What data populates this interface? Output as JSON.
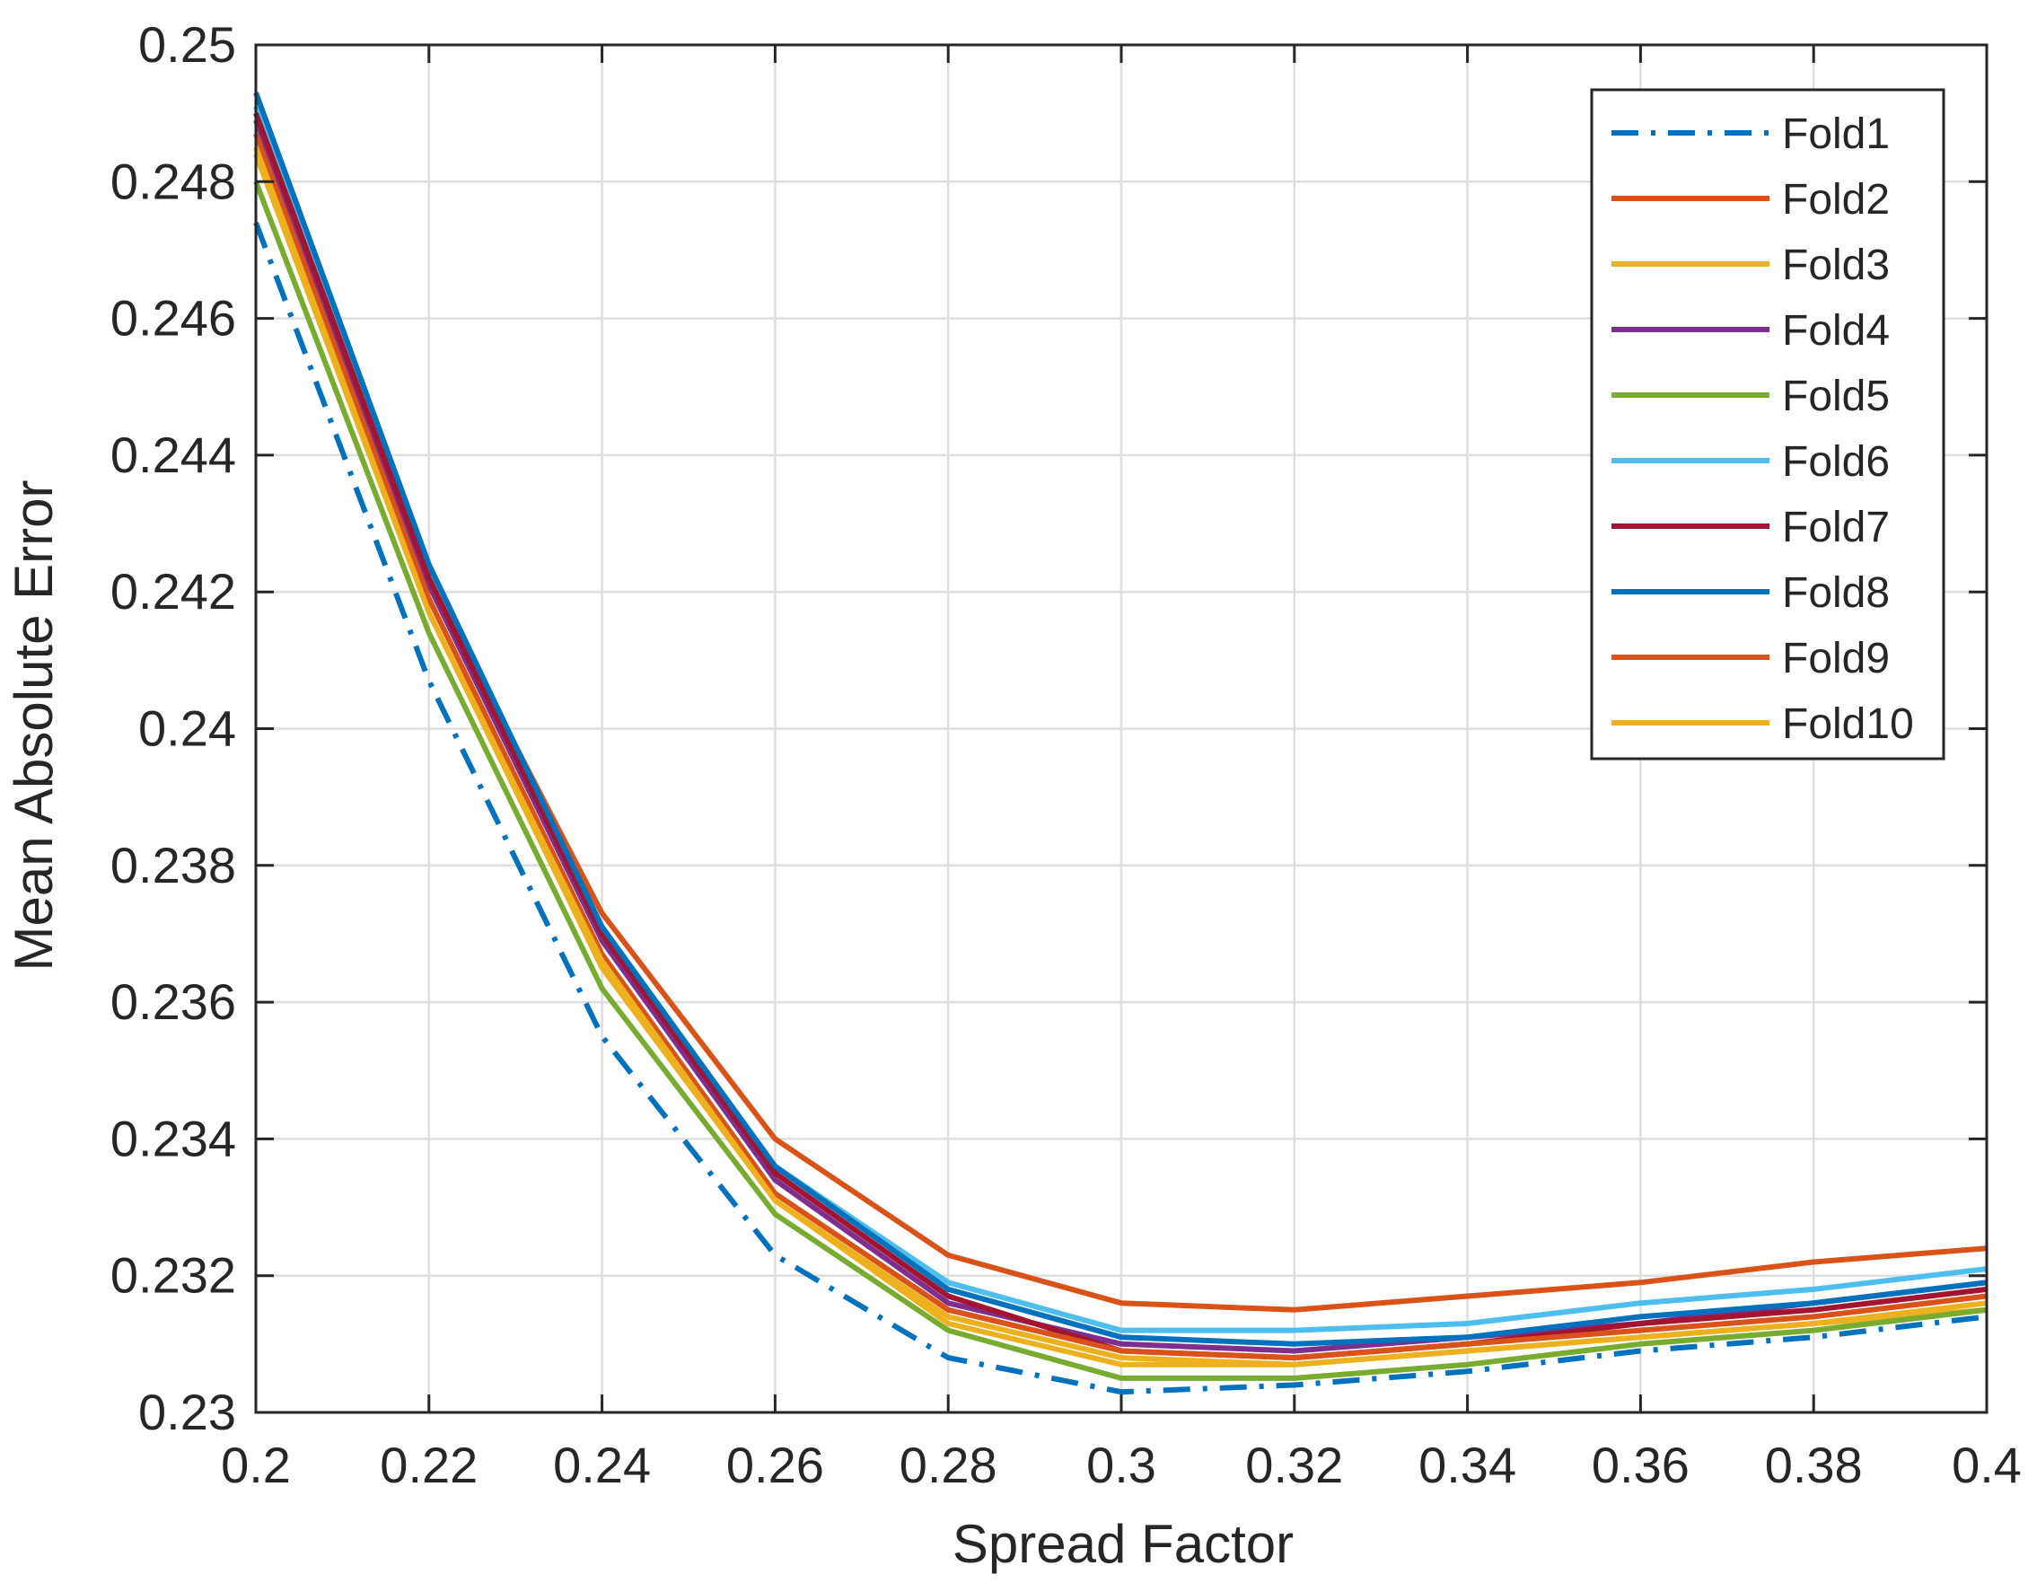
{
  "chart_data": {
    "type": "line",
    "title": "",
    "xlabel": "Spread Factor",
    "ylabel": "Mean Absolute Error",
    "xlim": [
      0.2,
      0.4
    ],
    "ylim": [
      0.23,
      0.25
    ],
    "grid": true,
    "legend_position": "top-right",
    "x": [
      0.2,
      0.22,
      0.24,
      0.26,
      0.28,
      0.3,
      0.32,
      0.34,
      0.36,
      0.38,
      0.4
    ],
    "x_ticks": [
      "0.2",
      "0.22",
      "0.24",
      "0.26",
      "0.28",
      "0.3",
      "0.32",
      "0.34",
      "0.36",
      "0.38",
      "0.4"
    ],
    "y_ticks": [
      {
        "value": 0.23,
        "label": "0.23"
      },
      {
        "value": 0.232,
        "label": "0.232"
      },
      {
        "value": 0.234,
        "label": "0.234"
      },
      {
        "value": 0.236,
        "label": "0.236"
      },
      {
        "value": 0.238,
        "label": "0.238"
      },
      {
        "value": 0.24,
        "label": "0.24"
      },
      {
        "value": 0.242,
        "label": "0.242"
      },
      {
        "value": 0.244,
        "label": "0.244"
      },
      {
        "value": 0.246,
        "label": "0.246"
      },
      {
        "value": 0.248,
        "label": "0.248"
      },
      {
        "value": 0.25,
        "label": "0.25"
      }
    ],
    "series": [
      {
        "name": "Fold1",
        "color": "#0072BD",
        "dash": "dashdot",
        "values": [
          0.2474,
          0.2407,
          0.2355,
          0.2323,
          0.2308,
          0.2303,
          0.2304,
          0.2306,
          0.2309,
          0.2311,
          0.2314
        ]
      },
      {
        "name": "Fold2",
        "color": "#D95319",
        "dash": "solid",
        "values": [
          0.249,
          0.2422,
          0.2373,
          0.234,
          0.2323,
          0.2316,
          0.2315,
          0.2317,
          0.2319,
          0.2322,
          0.2324
        ]
      },
      {
        "name": "Fold3",
        "color": "#EDB120",
        "dash": "solid",
        "values": [
          0.2484,
          0.2417,
          0.2365,
          0.2331,
          0.2313,
          0.2307,
          0.2307,
          0.2309,
          0.2311,
          0.2313,
          0.2315
        ]
      },
      {
        "name": "Fold4",
        "color": "#7E2F8E",
        "dash": "solid",
        "values": [
          0.2489,
          0.2421,
          0.2369,
          0.2334,
          0.2316,
          0.231,
          0.2309,
          0.2311,
          0.2313,
          0.2316,
          0.2319
        ]
      },
      {
        "name": "Fold5",
        "color": "#77AC30",
        "dash": "solid",
        "values": [
          0.248,
          0.2414,
          0.2362,
          0.2329,
          0.2312,
          0.2305,
          0.2305,
          0.2307,
          0.231,
          0.2312,
          0.2315
        ]
      },
      {
        "name": "Fold6",
        "color": "#4DBEEE",
        "dash": "solid",
        "values": [
          0.2491,
          0.2423,
          0.2371,
          0.2336,
          0.2319,
          0.2312,
          0.2312,
          0.2313,
          0.2316,
          0.2318,
          0.2321
        ]
      },
      {
        "name": "Fold7",
        "color": "#A2142F",
        "dash": "solid",
        "values": [
          0.249,
          0.2422,
          0.237,
          0.2335,
          0.2317,
          0.2309,
          0.2308,
          0.231,
          0.2313,
          0.2315,
          0.2318
        ]
      },
      {
        "name": "Fold8",
        "color": "#0072BD",
        "dash": "solid",
        "values": [
          0.2493,
          0.2424,
          0.2371,
          0.2336,
          0.2318,
          0.2311,
          0.231,
          0.2311,
          0.2314,
          0.2316,
          0.2319
        ]
      },
      {
        "name": "Fold9",
        "color": "#D95319",
        "dash": "solid",
        "values": [
          0.2487,
          0.2419,
          0.2367,
          0.2332,
          0.2315,
          0.2309,
          0.2308,
          0.231,
          0.2312,
          0.2314,
          0.2317
        ]
      },
      {
        "name": "Fold10",
        "color": "#EDB120",
        "dash": "solid",
        "values": [
          0.2485,
          0.2417,
          0.2366,
          0.2331,
          0.2314,
          0.2308,
          0.2307,
          0.2309,
          0.2311,
          0.2313,
          0.2316
        ]
      }
    ]
  }
}
